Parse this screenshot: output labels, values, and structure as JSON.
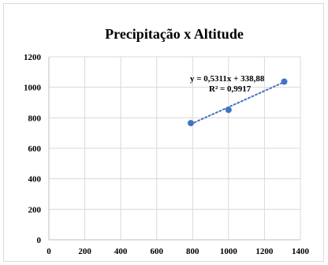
{
  "chart_data": {
    "type": "scatter",
    "title": "Precipitação x Altitude",
    "xlabel": "",
    "ylabel": "",
    "xlim": [
      0,
      1400
    ],
    "ylim": [
      0,
      1200
    ],
    "x_ticks": [
      "0",
      "200",
      "400",
      "600",
      "800",
      "1000",
      "1200",
      "1400"
    ],
    "y_ticks": [
      "0",
      "200",
      "400",
      "600",
      "800",
      "1000",
      "1200"
    ],
    "grid": true,
    "legend": "none",
    "series": [
      {
        "color": "#4472c4",
        "points": [
          {
            "x": 790,
            "y": 765
          },
          {
            "x": 1000,
            "y": 852
          },
          {
            "x": 1310,
            "y": 1037
          }
        ]
      }
    ],
    "trendline": {
      "type": "linear",
      "style": "dotted",
      "color": "#4472c4",
      "x_range": [
        790,
        1310
      ],
      "equation": "y = 0,5311x + 338,88",
      "r_squared": "R² = 0,9917"
    }
  }
}
